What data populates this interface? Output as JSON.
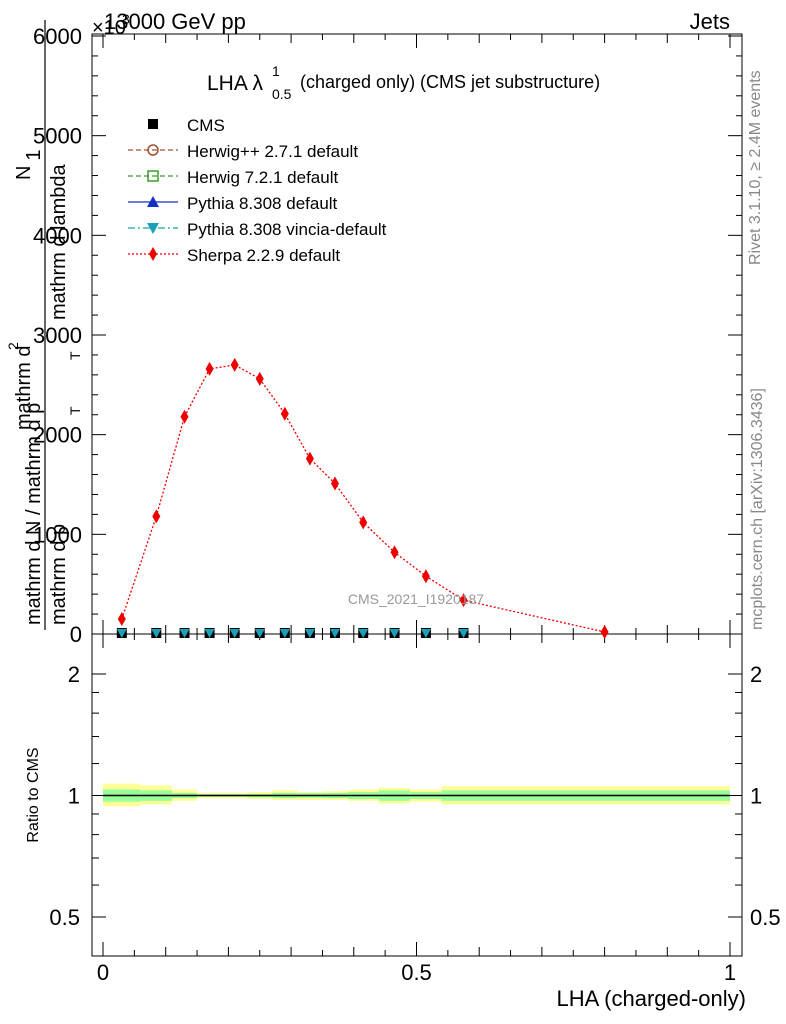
{
  "header": {
    "energy_label": "13000 GeV pp",
    "process_label": "Jets",
    "exponent_label": "×10",
    "exponent_power": "3"
  },
  "side_labels": {
    "rivet": "Rivet 3.1.10, ≥ 2.4M events",
    "mcplots": "mcplots.cern.ch [arXiv:1306.3436]"
  },
  "watermark": "CMS_2021_I1920187",
  "chart_data": [
    {
      "type": "line",
      "title": "LHA λ",
      "title_sup": "1",
      "title_sub": "0.5",
      "title_suffix": "(charged only) (CMS jet substructure)",
      "ylabel": "1 / mathrm d N / mathrm d p_T mathrm d^2N / mathrm d p_T mathrm d lambda",
      "ylabel_parts": {
        "one": "1",
        "den_main": "mathrm d N / mathrm d p",
        "den_sub": "T",
        "num_main": "mathrm d",
        "num_sup": "2",
        "num_rest": "N",
        "numden_main": "mathrm d p",
        "numden_sub": "T",
        "numden_rest": "mathrm d lambda"
      },
      "xlim": [
        0,
        1
      ],
      "ylim": [
        0,
        6000
      ],
      "y_ticks": [
        0,
        1000,
        2000,
        3000,
        4000,
        5000,
        6000
      ],
      "y_tick_labels": [
        "0",
        "1000",
        "2000",
        "3000",
        "4000",
        "5000",
        "6000"
      ],
      "legend_position": "top-left",
      "legend": [
        {
          "label": "CMS",
          "marker": "square-filled",
          "color": "#000000",
          "line": "none"
        },
        {
          "label": "Herwig++ 2.7.1 default",
          "marker": "circle-open",
          "color": "#a0522d",
          "line": "dashed"
        },
        {
          "label": "Herwig 7.2.1 default",
          "marker": "square-open",
          "color": "#3a9a2a",
          "line": "dashed"
        },
        {
          "label": "Pythia 8.308 default",
          "marker": "triangle-up",
          "color": "#1530c8",
          "line": "solid"
        },
        {
          "label": "Pythia 8.308 vincia-default",
          "marker": "triangle-down",
          "color": "#1aa0b8",
          "line": "dashdot"
        },
        {
          "label": "Sherpa 2.2.9 default",
          "marker": "diamond",
          "color": "#ee0000",
          "line": "dotted"
        }
      ],
      "series": [
        {
          "name": "Sherpa 2.2.9 default",
          "x": [
            0.03,
            0.085,
            0.13,
            0.17,
            0.21,
            0.25,
            0.29,
            0.33,
            0.37,
            0.415,
            0.465,
            0.515,
            0.575,
            0.8
          ],
          "y": [
            150,
            1180,
            2180,
            2660,
            2700,
            2560,
            2210,
            1760,
            1510,
            1120,
            820,
            580,
            340,
            20
          ]
        },
        {
          "name": "CMS",
          "x": [
            0.03,
            0.085,
            0.13,
            0.17,
            0.21,
            0.25,
            0.29,
            0.33,
            0.37,
            0.415,
            0.465,
            0.515,
            0.575
          ],
          "y": [
            10,
            10,
            10,
            10,
            10,
            10,
            10,
            10,
            10,
            10,
            10,
            10,
            10
          ]
        }
      ]
    },
    {
      "type": "line",
      "title": "",
      "ylabel": "Ratio to CMS",
      "xlabel": "LHA (charged-only)",
      "xlim": [
        0,
        1
      ],
      "ylim": [
        0.4,
        2.4
      ],
      "y_scale": "log",
      "y_ticks": [
        0.5,
        1,
        2
      ],
      "y_tick_labels": [
        "0.5",
        "1",
        "2"
      ],
      "x_ticks": [
        0,
        0.5,
        1
      ],
      "x_tick_labels": [
        "0",
        "0.5",
        "1"
      ],
      "bands": {
        "bin_edges": [
          0,
          0.06,
          0.11,
          0.15,
          0.19,
          0.23,
          0.27,
          0.31,
          0.35,
          0.39,
          0.44,
          0.49,
          0.54,
          0.61,
          1.0
        ],
        "yellow_lo": [
          0.94,
          0.95,
          0.97,
          0.985,
          0.985,
          0.98,
          0.975,
          0.975,
          0.975,
          0.97,
          0.955,
          0.965,
          0.95,
          0.95
        ],
        "yellow_hi": [
          1.07,
          1.06,
          1.035,
          1.015,
          1.015,
          1.02,
          1.03,
          1.02,
          1.025,
          1.035,
          1.045,
          1.035,
          1.055,
          1.055
        ],
        "green_lo": [
          0.965,
          0.97,
          0.985,
          0.993,
          0.993,
          0.99,
          0.985,
          0.987,
          0.985,
          0.98,
          0.97,
          0.98,
          0.97,
          0.97
        ],
        "green_hi": [
          1.035,
          1.03,
          1.015,
          1.007,
          1.007,
          1.01,
          1.015,
          1.013,
          1.015,
          1.02,
          1.03,
          1.02,
          1.03,
          1.03
        ],
        "yellow_color": "#ffff99",
        "green_color": "#99ff99"
      },
      "reference": 1
    }
  ]
}
